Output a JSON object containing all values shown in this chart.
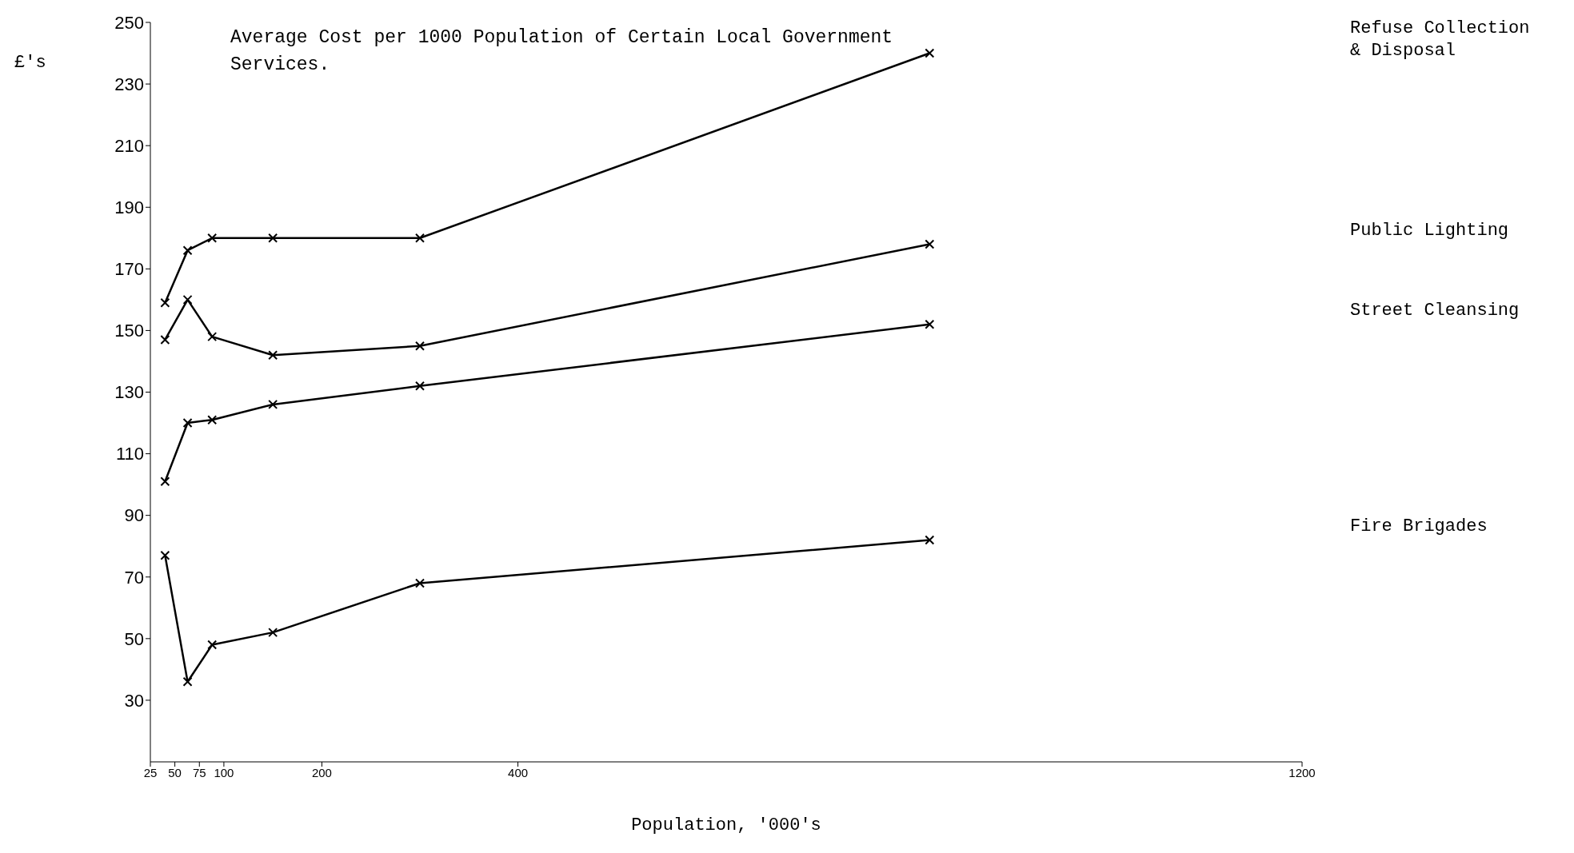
{
  "chart_data": {
    "type": "line",
    "title": "Average Cost per 1000 Population of Certain Local Government Services.",
    "xlabel": "Population, '000's",
    "ylabel": "£'s",
    "x": [
      40,
      63,
      88,
      150,
      300,
      820
    ],
    "series": [
      {
        "name": "Refuse Collection & Disposal",
        "color": "#000000",
        "values": [
          159,
          176,
          180,
          180,
          180,
          240
        ]
      },
      {
        "name": "Public Lighting",
        "color": "#000000",
        "values": [
          147,
          160,
          148,
          142,
          145,
          178
        ]
      },
      {
        "name": "Street Cleansing",
        "color": "#000000",
        "values": [
          101,
          120,
          121,
          126,
          132,
          152
        ]
      },
      {
        "name": "Fire Brigades",
        "color": "#000000",
        "values": [
          77,
          36,
          48,
          52,
          68,
          82
        ]
      }
    ],
    "xlim": [
      25,
      1200
    ],
    "xticks": [
      25,
      50,
      75,
      100,
      200,
      400,
      1200
    ],
    "ylim": [
      10,
      250
    ],
    "yticks": [
      30,
      50,
      70,
      90,
      110,
      130,
      150,
      170,
      190,
      210,
      230,
      250
    ],
    "grid": false,
    "legend": false,
    "marker": "cross",
    "line_style": "solid"
  }
}
